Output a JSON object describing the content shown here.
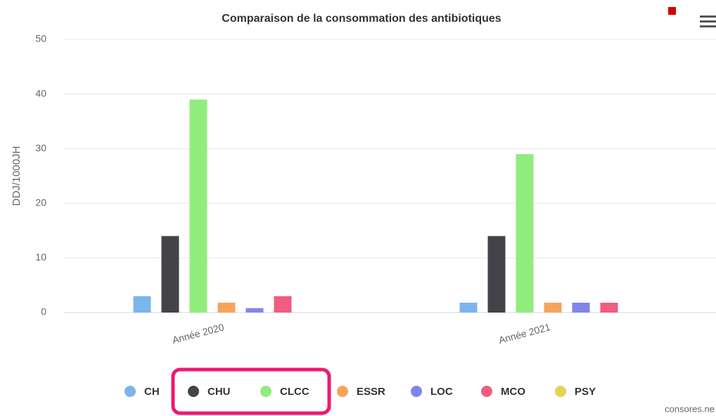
{
  "chart_data": {
    "type": "bar",
    "title": "Comparaison de la consommation des antibiotiques",
    "y_label": "DDJ/1000JH",
    "categories": [
      "Année 2020",
      "Année 2021"
    ],
    "series": [
      {
        "name": "CH",
        "color": "#7cb5ec",
        "values": [
          3,
          1.8
        ]
      },
      {
        "name": "CHU",
        "color": "#434348",
        "values": [
          14,
          14
        ]
      },
      {
        "name": "CLCC",
        "color": "#90ed7d",
        "values": [
          39,
          29
        ]
      },
      {
        "name": "ESSR",
        "color": "#f7a35c",
        "values": [
          1.8,
          1.8
        ]
      },
      {
        "name": "LOC",
        "color": "#8085e9",
        "values": [
          0.8,
          1.8
        ]
      },
      {
        "name": "MCO",
        "color": "#f15c80",
        "values": [
          3,
          1.8
        ]
      },
      {
        "name": "PSY",
        "color": "#e4d354",
        "values": [
          0,
          0
        ]
      }
    ],
    "ylim": [
      0,
      50
    ],
    "yticks": [
      0,
      10,
      20,
      30,
      40,
      50
    ],
    "grid": true,
    "legend": "bottom",
    "credit": "consores.ne"
  }
}
